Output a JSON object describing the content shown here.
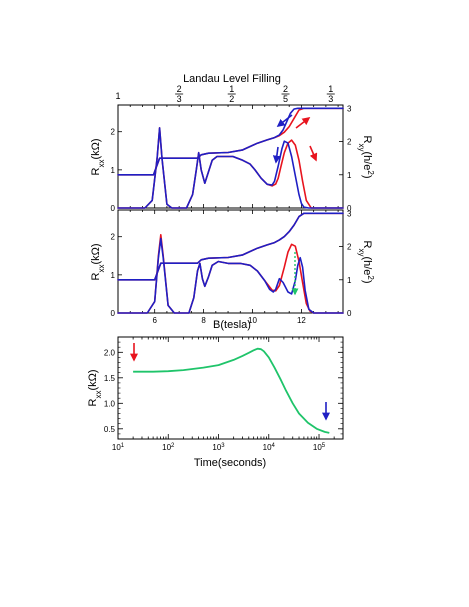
{
  "figure": {
    "top_axis_title": "Landau Level Filling",
    "filling_labels": [
      {
        "kind": "int",
        "text": "1",
        "b": 4.5
      },
      {
        "kind": "frac",
        "num": "2",
        "den": "3",
        "b": 7.0
      },
      {
        "kind": "frac",
        "num": "1",
        "den": "2",
        "b": 9.15
      },
      {
        "kind": "frac",
        "num": "2",
        "den": "5",
        "b": 11.35
      },
      {
        "kind": "frac",
        "num": "1",
        "den": "3",
        "b": 13.2
      }
    ],
    "panel_a": {
      "ylabel_left": {
        "main": "R",
        "sub": "xx",
        "rest": "(kΩ)"
      },
      "ylabel_right": {
        "main": "R",
        "sub": "xy",
        "rest": "(h/e",
        "sup": "2",
        "tail": ")"
      },
      "left_ticks": [
        "0",
        "1",
        "2"
      ],
      "right_ticks": [
        "0",
        "1",
        "2",
        "3"
      ]
    },
    "panel_b": {
      "ylabel_left": {
        "main": "R",
        "sub": "xx",
        "rest": "(kΩ)"
      },
      "ylabel_right": {
        "main": "R",
        "sub": "xy",
        "rest": "(h/e",
        "sup": "2",
        "tail": ")"
      },
      "left_ticks": [
        "0",
        "1",
        "2"
      ],
      "right_ticks": [
        "0",
        "1",
        "2",
        "3"
      ],
      "x_ticks": [
        "6",
        "8",
        "10",
        "12"
      ],
      "xlabel": "B(tesla)"
    },
    "panel_c": {
      "ylabel": {
        "main": "R",
        "sub": "xx",
        "rest": "(kΩ)"
      },
      "xlabel": "Time(seconds)",
      "y_ticks": [
        "0.5",
        "1.0",
        "1.5",
        "2.0"
      ],
      "x_ticks": [
        {
          "base": "10",
          "exp": "1"
        },
        {
          "base": "10",
          "exp": "2"
        },
        {
          "base": "10",
          "exp": "3"
        },
        {
          "base": "10",
          "exp": "4"
        },
        {
          "base": "10",
          "exp": "5"
        }
      ]
    }
  },
  "chart_data": [
    {
      "type": "line",
      "xlabel": "B(tesla)",
      "ylabel": "Rxx(kΩ)",
      "ylabel_right": "Rxy(h/e2)",
      "xlim": [
        4.5,
        13.7
      ],
      "ylim": [
        0,
        2.7
      ],
      "ylim_right": [
        0,
        3.1
      ],
      "colors": {
        "red": "#e8141e",
        "blue": "#1f1fc4"
      },
      "series": [
        {
          "color": "red",
          "axis": "left",
          "x": [
            4.5,
            5.6,
            5.9,
            6.1,
            6.2,
            6.3,
            6.5,
            6.7,
            7.3,
            7.55,
            7.7,
            7.8,
            7.9,
            8.05,
            8.2,
            8.35,
            8.55,
            8.8,
            9.2,
            9.6,
            9.9,
            10.1,
            10.35,
            10.6,
            10.8,
            10.95,
            11.05,
            11.15,
            11.3,
            11.45,
            11.6,
            11.75,
            11.9,
            12.05,
            12.2,
            12.4,
            12.7,
            13.7
          ],
          "y": [
            0,
            0,
            0.2,
            1.3,
            2.1,
            1.3,
            0.1,
            0,
            0,
            0.35,
            1.0,
            1.45,
            1.0,
            0.65,
            0.95,
            1.25,
            1.35,
            1.35,
            1.35,
            1.25,
            1.15,
            1.0,
            0.78,
            0.62,
            0.58,
            0.63,
            0.78,
            1.05,
            1.45,
            1.7,
            1.78,
            1.65,
            1.25,
            0.7,
            0.2,
            0,
            0,
            0
          ]
        },
        {
          "color": "blue",
          "axis": "left",
          "x": [
            4.5,
            5.6,
            5.9,
            6.1,
            6.2,
            6.3,
            6.5,
            6.7,
            7.3,
            7.55,
            7.7,
            7.8,
            7.9,
            8.05,
            8.2,
            8.35,
            8.55,
            8.8,
            9.2,
            9.6,
            9.9,
            10.1,
            10.35,
            10.6,
            10.8,
            10.9,
            11.05,
            11.2,
            11.3,
            11.45,
            11.6,
            11.75,
            11.9,
            12.0,
            12.1,
            12.3,
            13.7
          ],
          "y": [
            0,
            0,
            0.2,
            1.3,
            2.1,
            1.3,
            0.1,
            0,
            0,
            0.35,
            1.0,
            1.45,
            1.0,
            0.65,
            0.95,
            1.25,
            1.35,
            1.35,
            1.35,
            1.25,
            1.15,
            1.0,
            0.78,
            0.62,
            0.6,
            0.7,
            1.1,
            1.55,
            1.75,
            1.7,
            1.35,
            0.85,
            0.35,
            0.12,
            0.02,
            0,
            0
          ]
        },
        {
          "color": "red",
          "axis": "right",
          "x": [
            4.5,
            5.6,
            5.95,
            6.2,
            6.6,
            7.5,
            7.75,
            7.9,
            8.2,
            9.0,
            9.6,
            10.2,
            10.6,
            10.9,
            11.1,
            11.3,
            11.5,
            11.7,
            11.9,
            12.1,
            12.3,
            13.7
          ],
          "y": [
            1.0,
            1.0,
            1.0,
            1.5,
            1.5,
            1.5,
            1.5,
            1.6,
            1.65,
            1.67,
            1.75,
            1.95,
            2.05,
            2.12,
            2.18,
            2.28,
            2.45,
            2.7,
            2.95,
            3.0,
            3.0,
            3.0
          ]
        },
        {
          "color": "blue",
          "axis": "right",
          "x": [
            4.5,
            5.6,
            5.95,
            6.2,
            6.6,
            7.5,
            7.75,
            7.9,
            8.2,
            9.0,
            9.6,
            10.2,
            10.6,
            10.9,
            11.1,
            11.25,
            11.4,
            11.55,
            11.7,
            11.85,
            12.0,
            13.7
          ],
          "y": [
            1.0,
            1.0,
            1.0,
            1.5,
            1.5,
            1.5,
            1.5,
            1.6,
            1.65,
            1.67,
            1.75,
            1.95,
            2.05,
            2.12,
            2.2,
            2.35,
            2.6,
            2.85,
            2.98,
            3.0,
            3.0,
            3.0
          ]
        }
      ]
    },
    {
      "type": "line",
      "xlabel": "B(tesla)",
      "ylabel": "Rxx(kΩ)",
      "ylabel_right": "Rxy(h/e2)",
      "xlim": [
        4.5,
        13.7
      ],
      "ylim": [
        0,
        2.7
      ],
      "ylim_right": [
        0,
        3.1
      ],
      "colors": {
        "red": "#e8141e",
        "blue": "#1f1fc4",
        "green": "#1fc46a"
      },
      "series": [
        {
          "color": "red",
          "axis": "left",
          "x": [
            4.5,
            5.7,
            6.0,
            6.15,
            6.25,
            6.35,
            6.55,
            6.8,
            7.4,
            7.6,
            7.75,
            7.85,
            7.95,
            8.05,
            8.2,
            8.35,
            8.6,
            9.0,
            9.5,
            9.9,
            10.2,
            10.5,
            10.8,
            10.95,
            11.1,
            11.3,
            11.45,
            11.6,
            11.75,
            11.9,
            12.05,
            12.2,
            12.35,
            12.5,
            13.7
          ],
          "y": [
            0,
            0,
            0.3,
            1.5,
            2.05,
            1.5,
            0.2,
            0,
            0,
            0.4,
            1.1,
            1.3,
            0.9,
            0.7,
            0.95,
            1.25,
            1.35,
            1.3,
            1.3,
            1.25,
            1.1,
            0.85,
            0.6,
            0.58,
            0.72,
            1.2,
            1.6,
            1.8,
            1.75,
            1.35,
            0.8,
            0.25,
            0.05,
            0,
            0
          ]
        },
        {
          "color": "blue",
          "axis": "left",
          "x": [
            4.5,
            5.7,
            6.0,
            6.15,
            6.25,
            6.35,
            6.55,
            6.8,
            7.4,
            7.6,
            7.75,
            7.85,
            7.95,
            8.05,
            8.2,
            8.35,
            8.6,
            9.0,
            9.5,
            9.9,
            10.2,
            10.5,
            10.7,
            10.85,
            10.95,
            11.1,
            11.25,
            11.45,
            11.6,
            11.75,
            11.85,
            11.95,
            12.05,
            12.15,
            12.3,
            12.5,
            13.7
          ],
          "y": [
            0,
            0,
            0.3,
            1.45,
            1.95,
            1.45,
            0.2,
            0,
            0,
            0.4,
            1.1,
            1.3,
            0.9,
            0.7,
            0.95,
            1.25,
            1.35,
            1.3,
            1.3,
            1.25,
            1.1,
            0.85,
            0.62,
            0.55,
            0.62,
            0.9,
            0.8,
            0.55,
            0.5,
            0.85,
            1.25,
            1.45,
            1.2,
            0.6,
            0.1,
            0,
            0
          ]
        },
        {
          "color": "red",
          "axis": "right",
          "x": [
            4.5,
            5.7,
            6.0,
            6.25,
            6.7,
            7.5,
            7.75,
            7.9,
            8.2,
            9.0,
            9.6,
            10.2,
            10.6,
            10.9,
            11.1,
            11.3,
            11.5,
            11.7,
            11.9,
            12.1,
            12.3,
            13.7
          ],
          "y": [
            1.0,
            1.0,
            1.0,
            1.5,
            1.5,
            1.5,
            1.5,
            1.6,
            1.65,
            1.67,
            1.75,
            1.95,
            2.05,
            2.12,
            2.2,
            2.3,
            2.45,
            2.65,
            2.9,
            3.0,
            3.0,
            3.0
          ]
        },
        {
          "color": "blue",
          "axis": "right",
          "x": [
            4.5,
            5.7,
            6.0,
            6.25,
            6.7,
            7.5,
            7.75,
            7.9,
            8.2,
            9.0,
            9.6,
            10.2,
            10.6,
            10.9,
            11.1,
            11.3,
            11.5,
            11.7,
            11.9,
            12.1,
            12.3,
            13.7
          ],
          "y": [
            1.0,
            1.0,
            1.0,
            1.5,
            1.5,
            1.5,
            1.5,
            1.6,
            1.65,
            1.67,
            1.75,
            1.95,
            2.05,
            2.12,
            2.2,
            2.3,
            2.45,
            2.65,
            2.9,
            3.0,
            3.0,
            3.0
          ]
        }
      ]
    },
    {
      "type": "line",
      "xlabel": "Time(seconds)",
      "ylabel": "Rxx(kΩ)",
      "x_scale": "log",
      "xlim": [
        10,
        300000
      ],
      "ylim": [
        0.3,
        2.3
      ],
      "colors": {
        "green": "#1fc46a"
      },
      "series": [
        {
          "color": "green",
          "x": [
            20,
            50,
            100,
            200,
            500,
            1000,
            2000,
            3000,
            4000,
            5000,
            6000,
            7000,
            8000,
            10000,
            13000,
            17000,
            22000,
            30000,
            40000,
            60000,
            90000,
            130000,
            160000
          ],
          "y": [
            1.62,
            1.62,
            1.63,
            1.65,
            1.7,
            1.75,
            1.85,
            1.93,
            1.99,
            2.04,
            2.07,
            2.06,
            2.02,
            1.9,
            1.7,
            1.48,
            1.25,
            1.0,
            0.8,
            0.62,
            0.5,
            0.44,
            0.42
          ]
        }
      ]
    }
  ]
}
